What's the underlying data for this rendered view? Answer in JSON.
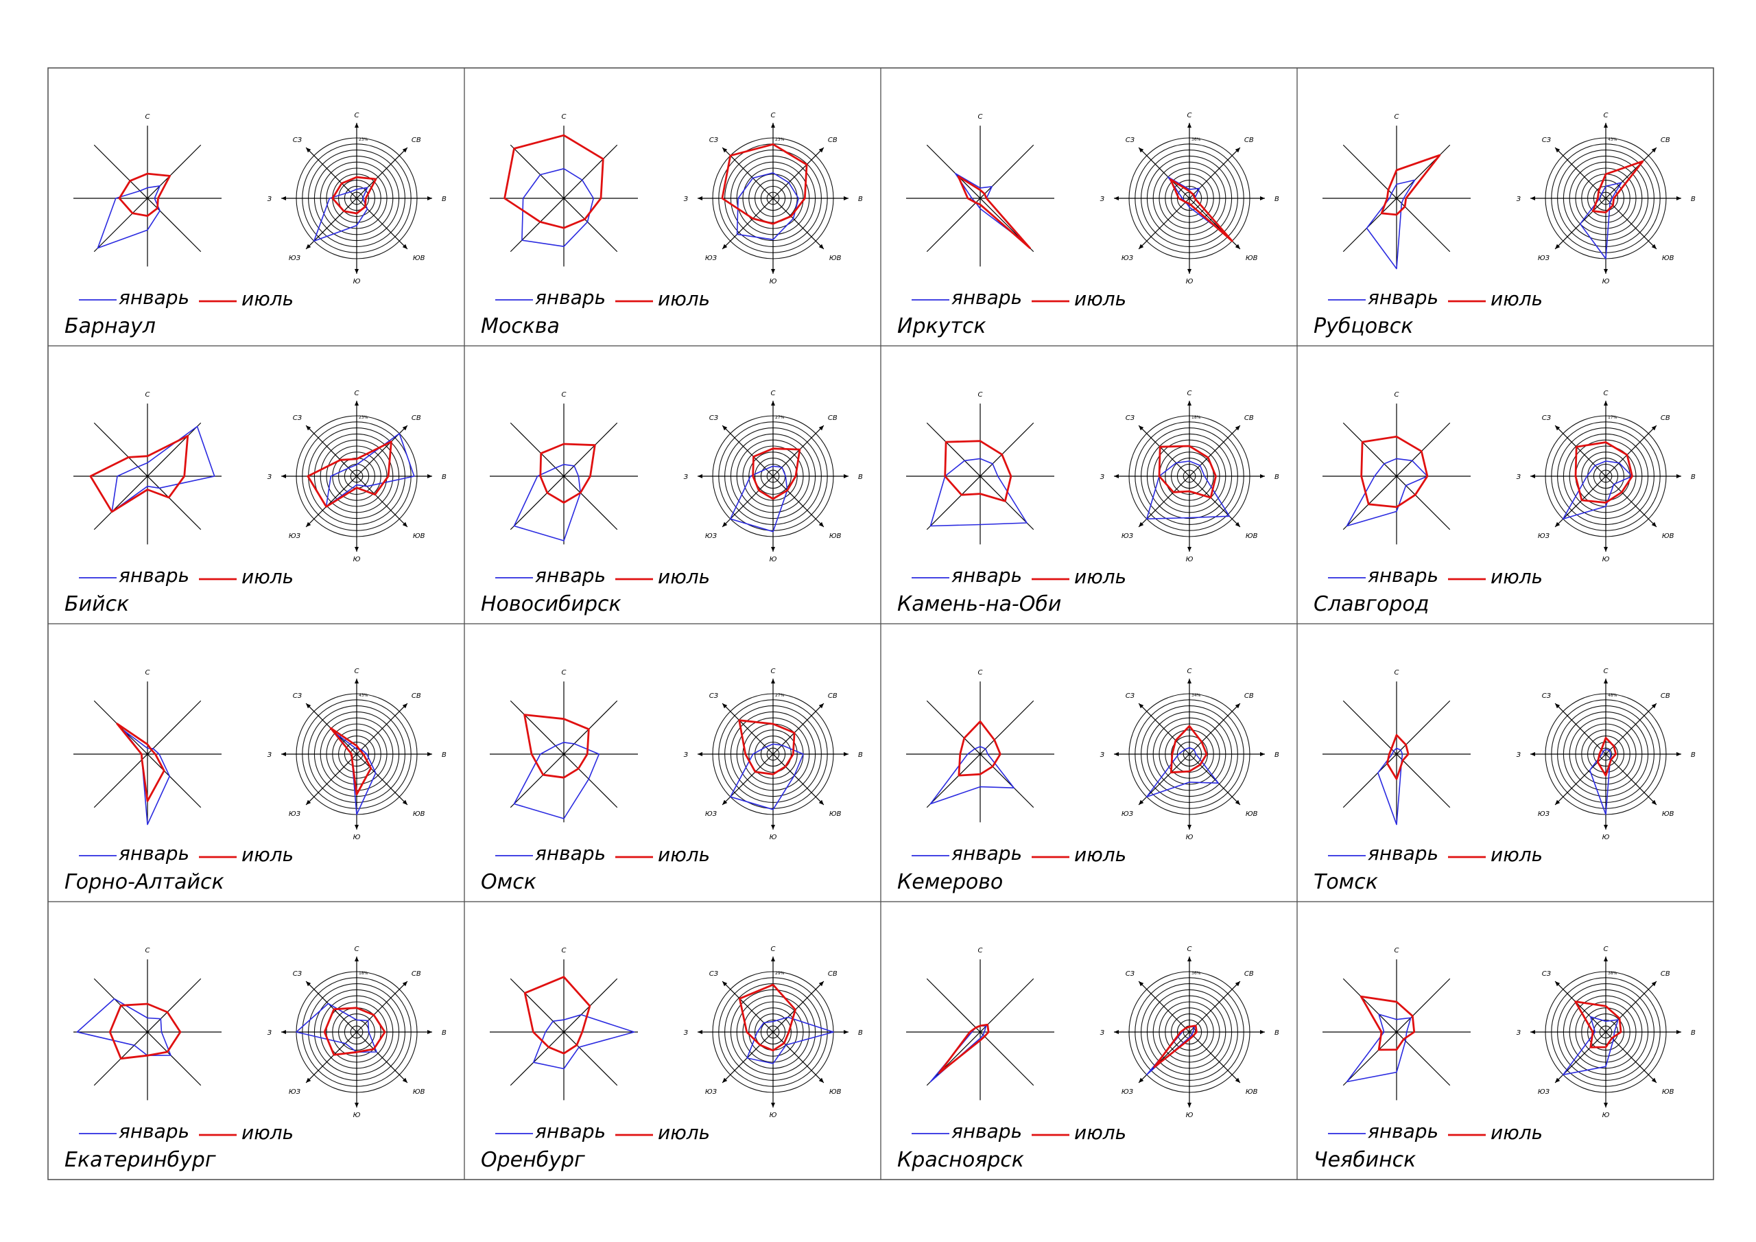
{
  "legend": {
    "january": "январь",
    "july": "июль"
  },
  "directions": [
    "С",
    "СВ",
    "В",
    "ЮВ",
    "Ю",
    "ЮЗ",
    "З",
    "СЗ"
  ],
  "colors": {
    "january": "#2a2ae0",
    "july": "#e01010",
    "axes": "#000000"
  },
  "chart_data": [
    {
      "type": "radar",
      "title": "Барнаул",
      "max_label": "23%",
      "directions": [
        "С",
        "СВ",
        "В",
        "ЮВ",
        "Ю",
        "ЮЗ",
        "З",
        "СЗ"
      ],
      "series": [
        {
          "name": "январь",
          "values": [
            3,
            5,
            2,
            5,
            9,
            20,
            9,
            3
          ]
        },
        {
          "name": "июль",
          "values": [
            7,
            9,
            3,
            4,
            5,
            6,
            8,
            7
          ]
        }
      ]
    },
    {
      "type": "radar",
      "title": "Москва",
      "max_label": "23%",
      "directions": [
        "С",
        "СВ",
        "В",
        "ЮВ",
        "Ю",
        "ЮЗ",
        "З",
        "СЗ"
      ],
      "series": [
        {
          "name": "январь",
          "values": [
            8,
            7,
            8,
            9,
            13,
            16,
            11,
            9
          ]
        },
        {
          "name": "июль",
          "values": [
            17,
            15,
            10,
            8,
            8,
            9,
            16,
            19
          ]
        }
      ]
    },
    {
      "type": "radar",
      "title": "Иркутск",
      "max_label": "36%",
      "directions": [
        "С",
        "СВ",
        "В",
        "ЮВ",
        "Ю",
        "ЮЗ",
        "З",
        "СЗ"
      ],
      "series": [
        {
          "name": "январь",
          "values": [
            5,
            8,
            3,
            29,
            5,
            3,
            4,
            17
          ]
        },
        {
          "name": "июль",
          "values": [
            4,
            3,
            3,
            34,
            3,
            3,
            6,
            15
          ]
        }
      ]
    },
    {
      "type": "radar",
      "title": "Рубцовск",
      "max_label": "43%",
      "directions": [
        "С",
        "СВ",
        "В",
        "ЮВ",
        "Ю",
        "ЮЗ",
        "З",
        "СЗ"
      ],
      "series": [
        {
          "name": "январь",
          "values": [
            6,
            11,
            3,
            3,
            30,
            18,
            3,
            3
          ]
        },
        {
          "name": "июль",
          "values": [
            12,
            26,
            4,
            5,
            7,
            9,
            4,
            5
          ]
        }
      ]
    },
    {
      "type": "radar",
      "title": "Бийск",
      "max_label": "23%",
      "directions": [
        "С",
        "СВ",
        "В",
        "ЮВ",
        "Ю",
        "ЮЗ",
        "З",
        "СЗ"
      ],
      "series": [
        {
          "name": "январь",
          "values": [
            4,
            21,
            20,
            5,
            3,
            15,
            9,
            4
          ]
        },
        {
          "name": "июль",
          "values": [
            6,
            17,
            11,
            9,
            4,
            15,
            17,
            8
          ]
        }
      ]
    },
    {
      "type": "radar",
      "title": "Новосибирск",
      "max_label": "27%",
      "directions": [
        "С",
        "СВ",
        "В",
        "ЮВ",
        "Ю",
        "ЮЗ",
        "З",
        "СЗ"
      ],
      "series": [
        {
          "name": "январь",
          "values": [
            4,
            5,
            5,
            8,
            22,
            24,
            9,
            4
          ]
        },
        {
          "name": "июль",
          "values": [
            11,
            15,
            9,
            8,
            9,
            8,
            8,
            11
          ]
        }
      ]
    },
    {
      "type": "radar",
      "title": "Камень-на-Оби",
      "max_label": "18%",
      "directions": [
        "С",
        "СВ",
        "В",
        "ЮВ",
        "Ю",
        "ЮЗ",
        "З",
        "СЗ"
      ],
      "series": [
        {
          "name": "январь",
          "values": [
            4,
            4,
            4,
            15,
            11,
            16,
            8,
            5
          ]
        },
        {
          "name": "июль",
          "values": [
            8,
            7,
            7,
            8,
            4,
            6,
            8,
            11
          ]
        }
      ]
    },
    {
      "type": "radar",
      "title": "Славгород",
      "max_label": "17%",
      "directions": [
        "С",
        "СВ",
        "В",
        "ЮВ",
        "Ю",
        "ЮЗ",
        "З",
        "СЗ"
      ],
      "series": [
        {
          "name": "январь",
          "values": [
            4,
            5,
            7,
            3,
            8,
            16,
            5,
            4
          ]
        },
        {
          "name": "июль",
          "values": [
            9,
            8,
            7,
            6,
            7,
            9,
            8,
            11
          ]
        }
      ]
    },
    {
      "type": "radar",
      "title": "Горно-Алтайск",
      "max_label": "43%",
      "directions": [
        "С",
        "СВ",
        "В",
        "ЮВ",
        "Ю",
        "ЮЗ",
        "З",
        "СЗ"
      ],
      "series": [
        {
          "name": "январь",
          "values": [
            3,
            4,
            6,
            16,
            36,
            4,
            3,
            17
          ]
        },
        {
          "name": "июль",
          "values": [
            5,
            3,
            4,
            12,
            24,
            4,
            3,
            22
          ]
        }
      ]
    },
    {
      "type": "radar",
      "title": "Омск",
      "max_label": "27%",
      "directions": [
        "С",
        "СВ",
        "В",
        "ЮВ",
        "Ю",
        "ЮЗ",
        "З",
        "СЗ"
      ],
      "series": [
        {
          "name": "январь",
          "values": [
            4,
            5,
            12,
            12,
            22,
            24,
            8,
            4
          ]
        },
        {
          "name": "июль",
          "values": [
            12,
            12,
            8,
            7,
            8,
            10,
            11,
            19
          ]
        }
      ]
    },
    {
      "type": "radar",
      "title": "Кемерово",
      "max_label": "34%",
      "directions": [
        "С",
        "СВ",
        "В",
        "ЮВ",
        "Ю",
        "ЮЗ",
        "З",
        "СЗ"
      ],
      "series": [
        {
          "name": "январь",
          "values": [
            3,
            3,
            3,
            19,
            13,
            28,
            5,
            3
          ]
        },
        {
          "name": "июль",
          "values": [
            13,
            8,
            8,
            7,
            8,
            12,
            8,
            9
          ]
        }
      ]
    },
    {
      "type": "radar",
      "title": "Томск",
      "max_label": "48%",
      "directions": [
        "С",
        "СВ",
        "В",
        "ЮВ",
        "Ю",
        "ЮЗ",
        "З",
        "СЗ"
      ],
      "series": [
        {
          "name": "январь",
          "values": [
            4,
            4,
            4,
            5,
            48,
            18,
            3,
            3
          ]
        },
        {
          "name": "июль",
          "values": [
            13,
            9,
            8,
            6,
            17,
            9,
            5,
            5
          ]
        }
      ]
    },
    {
      "type": "radar",
      "title": "Екатеринбург",
      "max_label": "18%",
      "directions": [
        "С",
        "СВ",
        "В",
        "ЮВ",
        "Ю",
        "ЮЗ",
        "З",
        "СЗ"
      ],
      "series": [
        {
          "name": "январь",
          "values": [
            3,
            4,
            3,
            7,
            5,
            4,
            15,
            10
          ]
        },
        {
          "name": "июль",
          "values": [
            6,
            6,
            7,
            6,
            5,
            8,
            8,
            8
          ]
        }
      ]
    },
    {
      "type": "radar",
      "title": "Оренбург",
      "max_label": "29%",
      "directions": [
        "С",
        "СВ",
        "В",
        "ЮВ",
        "Ю",
        "ЮЗ",
        "З",
        "СЗ"
      ],
      "series": [
        {
          "name": "январь",
          "values": [
            4,
            8,
            23,
            7,
            12,
            14,
            6,
            5
          ]
        },
        {
          "name": "июль",
          "values": [
            18,
            12,
            6,
            6,
            7,
            7,
            10,
            18
          ]
        }
      ]
    },
    {
      "type": "radar",
      "title": "Красноярск",
      "max_label": "36%",
      "directions": [
        "С",
        "СВ",
        "В",
        "ЮВ",
        "Ю",
        "ЮЗ",
        "З",
        "СЗ"
      ],
      "series": [
        {
          "name": "январь",
          "values": [
            3,
            4,
            2,
            2,
            3,
            34,
            4,
            3
          ]
        },
        {
          "name": "июль",
          "values": [
            3,
            5,
            4,
            3,
            4,
            28,
            5,
            3
          ]
        }
      ]
    },
    {
      "type": "radar",
      "title": "Чеябинск",
      "max_label": "38%",
      "directions": [
        "С",
        "СВ",
        "В",
        "ЮВ",
        "Ю",
        "ЮЗ",
        "З",
        "СЗ"
      ],
      "series": [
        {
          "name": "январь",
          "values": [
            5,
            8,
            4,
            5,
            16,
            28,
            5,
            10
          ]
        },
        {
          "name": "июль",
          "values": [
            12,
            9,
            7,
            4,
            7,
            10,
            6,
            20
          ]
        }
      ]
    }
  ]
}
